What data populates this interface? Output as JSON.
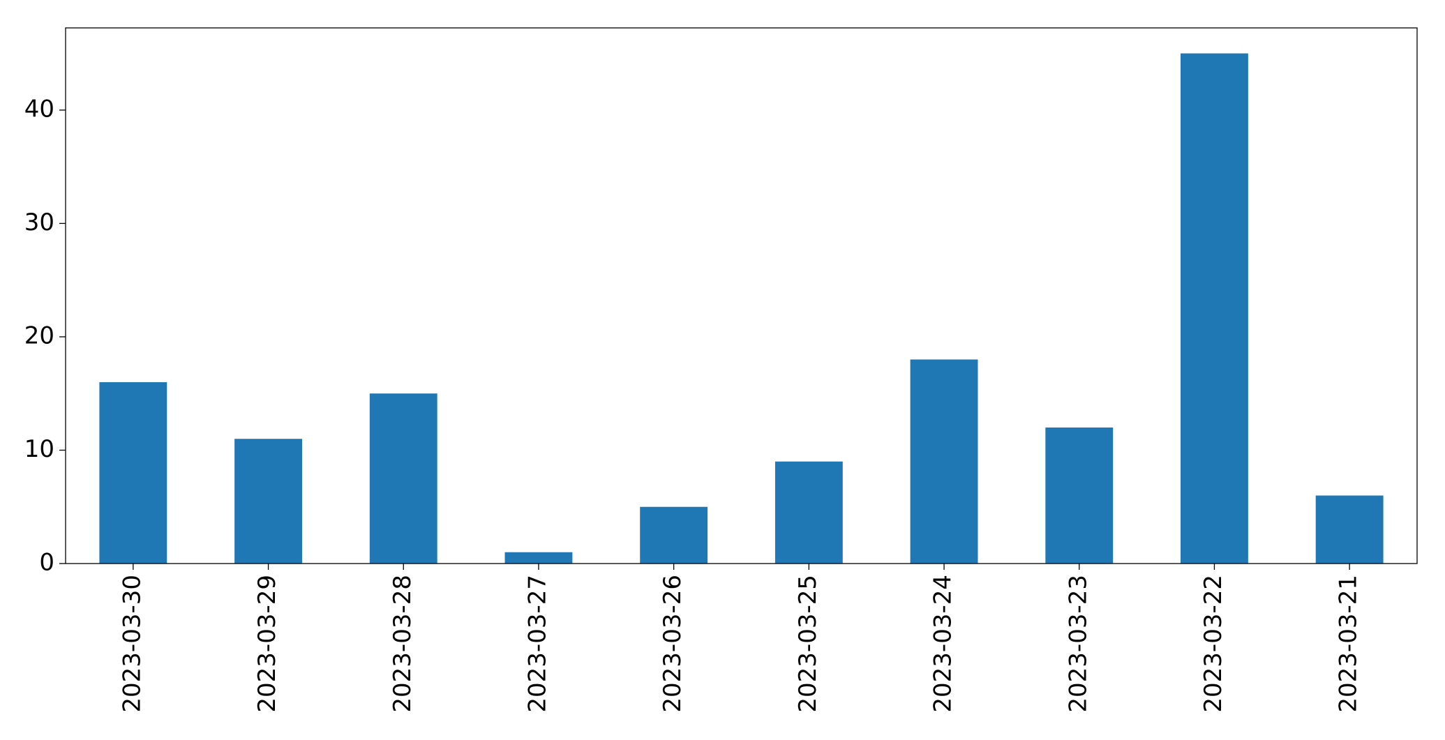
{
  "chart_data": {
    "type": "bar",
    "categories": [
      "2023-03-30",
      "2023-03-29",
      "2023-03-28",
      "2023-03-27",
      "2023-03-26",
      "2023-03-25",
      "2023-03-24",
      "2023-03-23",
      "2023-03-22",
      "2023-03-21"
    ],
    "values": [
      16,
      11,
      15,
      1,
      5,
      9,
      18,
      12,
      45,
      6
    ],
    "color": "#1f77b4",
    "ylim": [
      0,
      47.25
    ],
    "yticks": [
      0,
      10,
      20,
      30,
      40
    ],
    "grid": false
  }
}
